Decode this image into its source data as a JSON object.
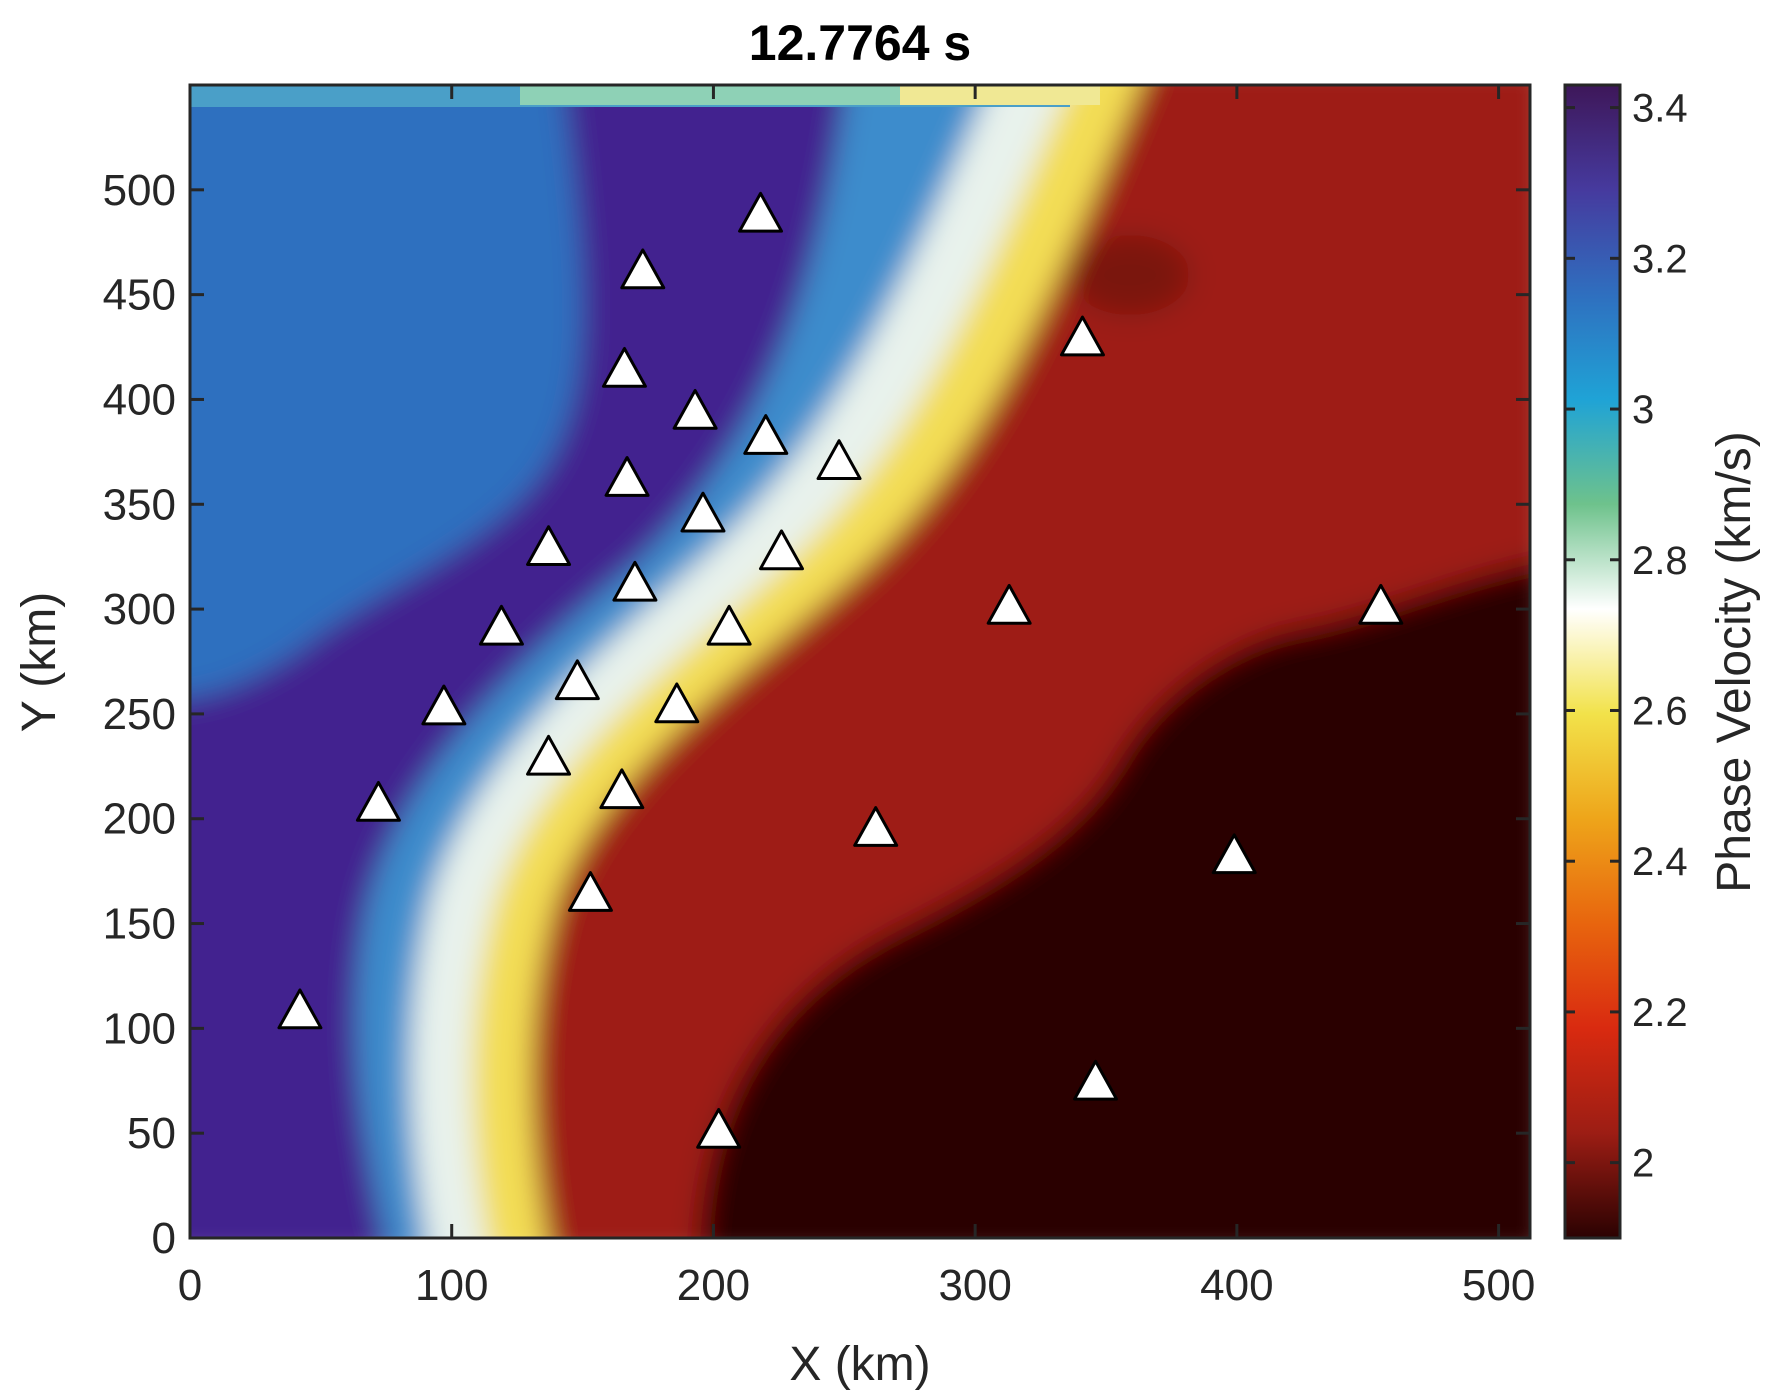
{
  "chart_data": {
    "type": "contour",
    "title": "12.7764 s",
    "xlabel": "X (km)",
    "ylabel": "Y (km)",
    "colorbar_label": "Phase Velocity (km/s)",
    "xlim": [
      0,
      512
    ],
    "ylim": [
      0,
      550
    ],
    "clim": [
      1.9,
      3.43
    ],
    "x_ticks": [
      0,
      100,
      200,
      300,
      400,
      500
    ],
    "y_ticks": [
      0,
      50,
      100,
      150,
      200,
      250,
      300,
      350,
      400,
      450,
      500
    ],
    "colorbar_ticks": [
      2,
      2.2,
      2.4,
      2.6,
      2.8,
      3,
      3.2,
      3.4
    ],
    "colormap": [
      "#2b0202",
      "#9c1d14",
      "#d92a10",
      "#e8650e",
      "#eea51a",
      "#f2e24a",
      "#ffffff",
      "#6ec28c",
      "#1fa3d6",
      "#2f6fbf",
      "#463a9e",
      "#3e1759"
    ],
    "stations": [
      {
        "x": 218,
        "y": 488
      },
      {
        "x": 173,
        "y": 461
      },
      {
        "x": 166,
        "y": 414
      },
      {
        "x": 341,
        "y": 429
      },
      {
        "x": 193,
        "y": 394
      },
      {
        "x": 220,
        "y": 382
      },
      {
        "x": 248,
        "y": 370
      },
      {
        "x": 167,
        "y": 362
      },
      {
        "x": 196,
        "y": 345
      },
      {
        "x": 137,
        "y": 329
      },
      {
        "x": 226,
        "y": 327
      },
      {
        "x": 170,
        "y": 312
      },
      {
        "x": 119,
        "y": 291
      },
      {
        "x": 206,
        "y": 291
      },
      {
        "x": 313,
        "y": 301
      },
      {
        "x": 455,
        "y": 301
      },
      {
        "x": 148,
        "y": 265
      },
      {
        "x": 97,
        "y": 253
      },
      {
        "x": 186,
        "y": 254
      },
      {
        "x": 137,
        "y": 229
      },
      {
        "x": 72,
        "y": 207
      },
      {
        "x": 165,
        "y": 213
      },
      {
        "x": 262,
        "y": 195
      },
      {
        "x": 399,
        "y": 182
      },
      {
        "x": 153,
        "y": 164
      },
      {
        "x": 42,
        "y": 108
      },
      {
        "x": 346,
        "y": 74
      },
      {
        "x": 202,
        "y": 51
      }
    ]
  }
}
